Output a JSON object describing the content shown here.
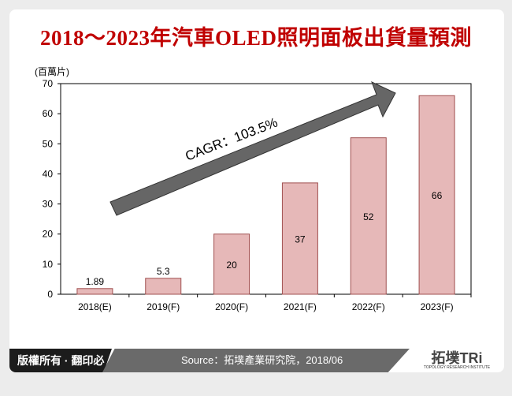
{
  "title": "2018～2023年汽車OLED照明面板出貨量預測",
  "footer": {
    "copyright": "版權所有 · 翻印必究",
    "source": "Source：拓墣產業研究院，2018/06",
    "logo_text": "拓墣TRi",
    "logo_subtext": "TOPOLOGY RESEARCH INSTITUTE"
  },
  "chart_data": {
    "type": "bar",
    "ylabel": "(百萬片)",
    "ylim": [
      0,
      70
    ],
    "yticks": [
      0,
      10,
      20,
      30,
      40,
      50,
      60,
      70
    ],
    "categories": [
      "2018(E)",
      "2019(F)",
      "2020(F)",
      "2021(F)",
      "2022(F)",
      "2023(F)"
    ],
    "values": [
      1.89,
      5.3,
      20,
      37,
      52,
      66
    ],
    "value_labels": [
      "1.89",
      "5.3",
      "20",
      "37",
      "52",
      "66"
    ],
    "annotation": "CAGR：103.5%",
    "colors": {
      "bar_fill": "#e6b8b8",
      "bar_stroke": "#a05050",
      "arrow": "#666666",
      "title": "#c00000"
    }
  }
}
